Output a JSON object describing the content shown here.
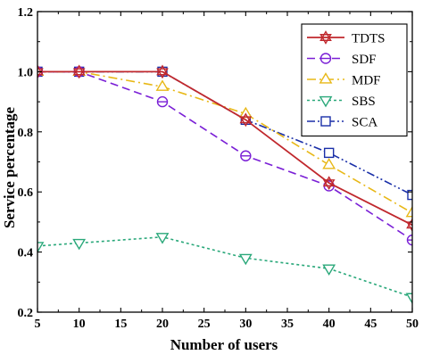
{
  "chart_data": {
    "type": "line",
    "title": "",
    "xlabel": "Number of users",
    "ylabel": "Service percentage",
    "xlim": [
      5,
      50
    ],
    "ylim": [
      0.2,
      1.2
    ],
    "xticks": [
      5,
      10,
      15,
      20,
      25,
      30,
      35,
      40,
      45,
      50
    ],
    "yticks": [
      0.2,
      0.4,
      0.6,
      0.8,
      1.0,
      1.2
    ],
    "xtick_labels": [
      "5",
      "10",
      "15",
      "20",
      "25",
      "30",
      "35",
      "40",
      "45",
      "50"
    ],
    "ytick_labels": [
      "0.2",
      "0.4",
      "0.6",
      "0.8",
      "1.0",
      "1.2"
    ],
    "grid": false,
    "legend_position": "top-right",
    "x": [
      5,
      10,
      20,
      30,
      40,
      50
    ],
    "series": [
      {
        "name": "TDTS",
        "values": [
          1.0,
          1.0,
          1.0,
          0.84,
          0.63,
          0.49
        ],
        "color": "#c0282d",
        "dash": "solid",
        "marker": "hexagram"
      },
      {
        "name": "SDF",
        "values": [
          1.0,
          1.0,
          0.9,
          0.72,
          0.62,
          0.44
        ],
        "color": "#7a1fd6",
        "dash": "dashed",
        "marker": "circle-bar"
      },
      {
        "name": "MDF",
        "values": [
          1.0,
          1.0,
          0.95,
          0.86,
          0.69,
          0.53
        ],
        "color": "#e8b817",
        "dash": "dashdot",
        "marker": "triangle-up"
      },
      {
        "name": "SBS",
        "values": [
          0.42,
          0.43,
          0.45,
          0.38,
          0.345,
          0.25
        ],
        "color": "#2aa87a",
        "dash": "dotted",
        "marker": "triangle-down"
      },
      {
        "name": "SCA",
        "values": [
          1.0,
          1.0,
          1.0,
          0.84,
          0.73,
          0.59
        ],
        "color": "#1a2fa8",
        "dash": "dashdotdot",
        "marker": "square"
      }
    ]
  }
}
